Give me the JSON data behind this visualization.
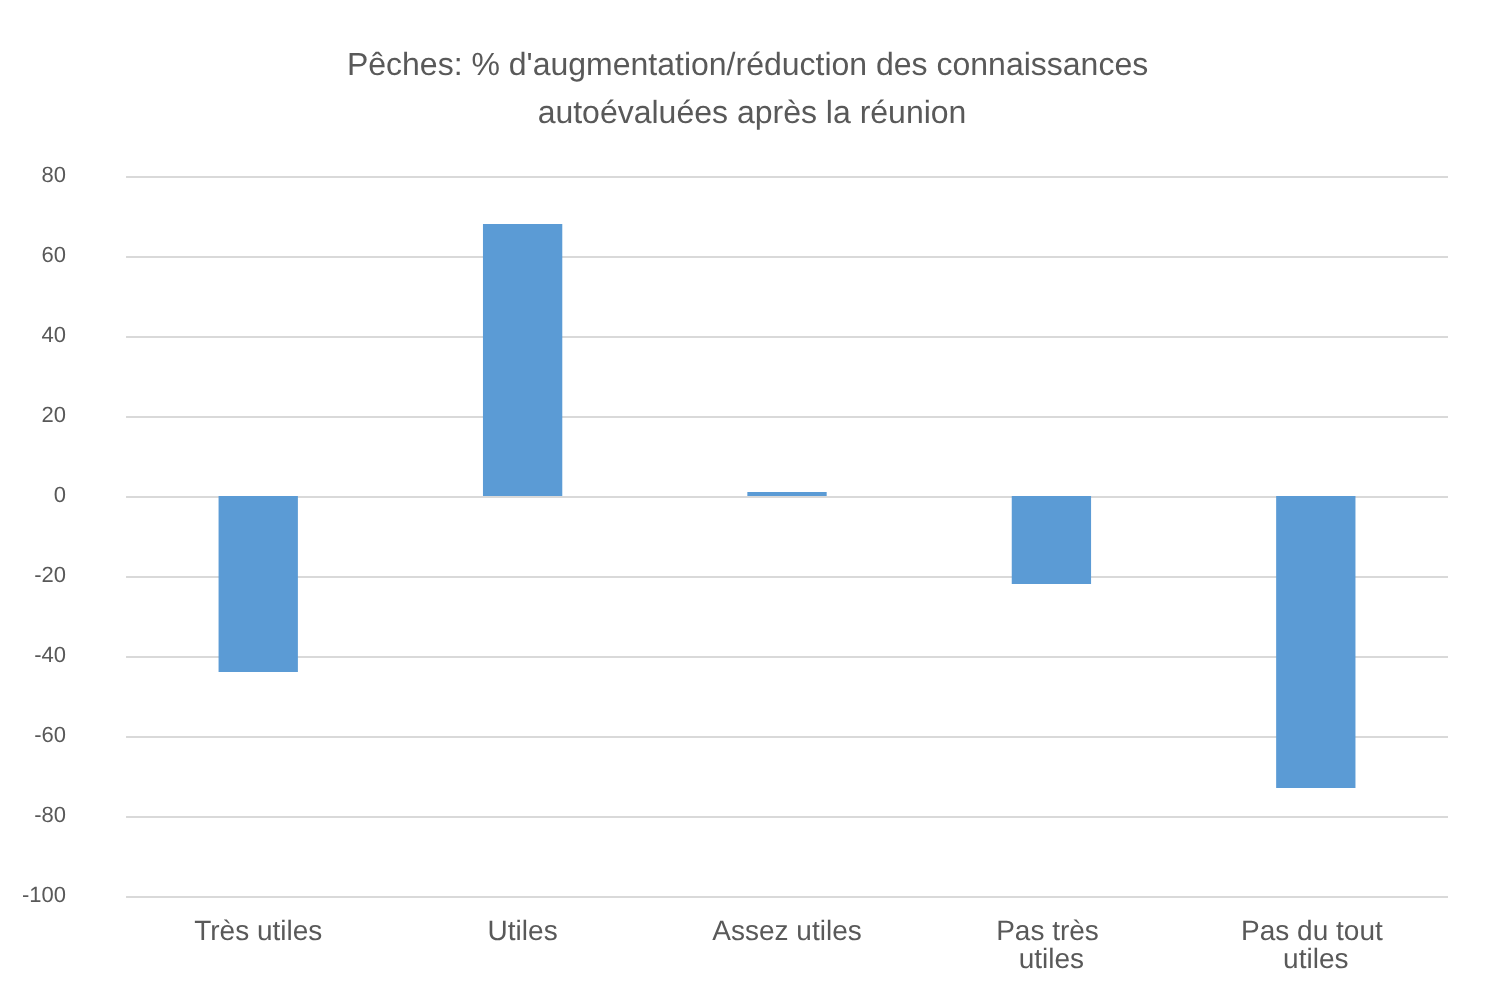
{
  "chart_data": {
    "type": "bar",
    "title": "Pêches: % d'augmentation/réduction des connaissances autoévaluées après la réunion",
    "categories": [
      "Très utiles",
      "Utiles",
      "Assez utiles",
      "Pas très utiles",
      "Pas du tout utiles"
    ],
    "values": [
      -44,
      68,
      1,
      -22,
      -73
    ],
    "color": "#5b9bd5",
    "ylim": [
      -100,
      80
    ],
    "yticks": [
      -100,
      -80,
      -60,
      -40,
      -20,
      0,
      20,
      40,
      60,
      80
    ],
    "grid": "y"
  }
}
